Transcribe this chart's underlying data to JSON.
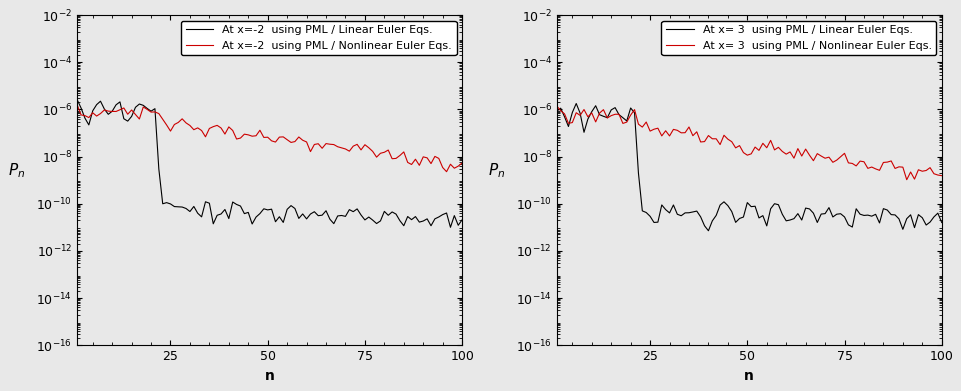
{
  "subplot1": {
    "legend1": "At x=-2  using PML / Linear Euler Eqs.",
    "legend2": "At x=-2  using PML / Nonlinear Euler Eqs.",
    "xlabel": "n",
    "ylabel": "$P_n$"
  },
  "subplot2": {
    "legend1": "At x= 3  using PML / Linear Euler Eqs.",
    "legend2": "At x= 3  using PML / Nonlinear Euler Eqs.",
    "xlabel": "n",
    "ylabel": "$P_n$"
  },
  "ylim_low": 1e-16,
  "ylim_high": 0.01,
  "xlim_low": 1,
  "xlim_high": 100,
  "xticks": [
    25,
    50,
    75,
    100
  ],
  "background_color": "#e8e8e8",
  "black_color": "#000000",
  "red_color": "#cc0000",
  "linewidth": 0.8,
  "font_size": 9,
  "legend_font_size": 8
}
